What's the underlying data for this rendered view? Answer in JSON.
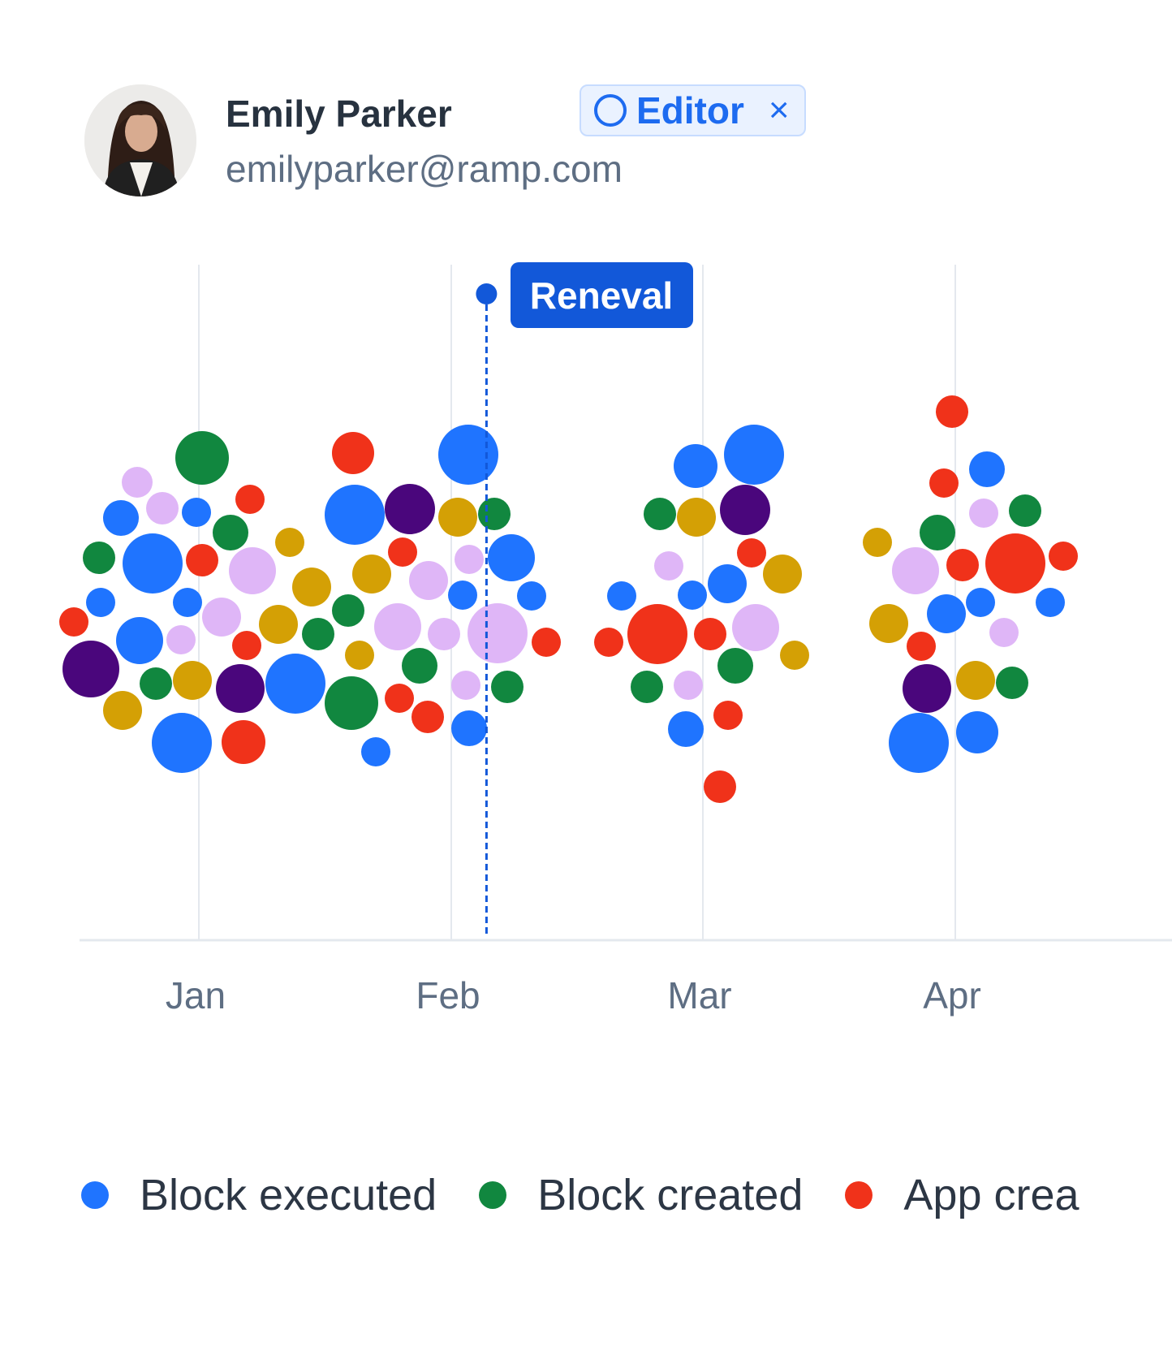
{
  "user": {
    "name": "Emily Parker",
    "email": "emilyparker@ramp.com",
    "role": "Editor",
    "role_icon": "circle-icon",
    "remove_icon": "close-icon",
    "remove_glyph": "×"
  },
  "colors": {
    "blue": "#1f74ff",
    "green": "#11873f",
    "red": "#f0321a",
    "gold": "#d4a005",
    "lavender": "#dfb6f7",
    "purple": "#4a067c",
    "marker": "#1258d9",
    "grid": "#e4e8ee",
    "axis_label": "#5e6e83"
  },
  "chart_data": {
    "type": "scatter",
    "x_tick_labels": [
      "Jan",
      "Feb",
      "Mar",
      "Apr"
    ],
    "annotation": {
      "label": "Reneval",
      "x_month_offset": 1.14
    },
    "series_legend": [
      {
        "name": "Block executed",
        "color": "blue"
      },
      {
        "name": "Block created",
        "color": "green"
      },
      {
        "name": "App crea",
        "color": "red"
      }
    ],
    "bubbles": [
      [
        169,
        594,
        19,
        "lavender"
      ],
      [
        249,
        564,
        33,
        "green"
      ],
      [
        200,
        626,
        20,
        "lavender"
      ],
      [
        149,
        638,
        22,
        "blue"
      ],
      [
        242,
        631,
        18,
        "blue"
      ],
      [
        308,
        615,
        18,
        "red"
      ],
      [
        284,
        656,
        22,
        "green"
      ],
      [
        122,
        687,
        20,
        "green"
      ],
      [
        188,
        694,
        37,
        "blue"
      ],
      [
        249,
        690,
        20,
        "red"
      ],
      [
        311,
        703,
        29,
        "lavender"
      ],
      [
        357,
        668,
        18,
        "gold"
      ],
      [
        124,
        742,
        18,
        "blue"
      ],
      [
        231,
        742,
        18,
        "blue"
      ],
      [
        273,
        760,
        24,
        "lavender"
      ],
      [
        384,
        723,
        24,
        "gold"
      ],
      [
        91,
        766,
        18,
        "red"
      ],
      [
        343,
        769,
        24,
        "gold"
      ],
      [
        172,
        789,
        29,
        "blue"
      ],
      [
        223,
        788,
        18,
        "lavender"
      ],
      [
        304,
        795,
        18,
        "red"
      ],
      [
        392,
        781,
        20,
        "green"
      ],
      [
        112,
        824,
        35,
        "purple"
      ],
      [
        192,
        842,
        20,
        "green"
      ],
      [
        237,
        838,
        24,
        "gold"
      ],
      [
        296,
        848,
        30,
        "purple"
      ],
      [
        364,
        842,
        37,
        "blue"
      ],
      [
        151,
        875,
        24,
        "gold"
      ],
      [
        224,
        915,
        37,
        "blue"
      ],
      [
        300,
        914,
        27,
        "red"
      ],
      [
        435,
        558,
        26,
        "red"
      ],
      [
        437,
        634,
        37,
        "blue"
      ],
      [
        505,
        627,
        31,
        "purple"
      ],
      [
        496,
        680,
        18,
        "red"
      ],
      [
        458,
        707,
        24,
        "gold"
      ],
      [
        528,
        715,
        24,
        "lavender"
      ],
      [
        429,
        752,
        20,
        "green"
      ],
      [
        490,
        772,
        29,
        "lavender"
      ],
      [
        443,
        807,
        18,
        "gold"
      ],
      [
        517,
        820,
        22,
        "green"
      ],
      [
        433,
        866,
        33,
        "green"
      ],
      [
        492,
        860,
        18,
        "red"
      ],
      [
        527,
        883,
        20,
        "red"
      ],
      [
        463,
        926,
        18,
        "blue"
      ],
      [
        577,
        560,
        37,
        "blue"
      ],
      [
        564,
        637,
        24,
        "gold"
      ],
      [
        609,
        633,
        20,
        "green"
      ],
      [
        578,
        689,
        18,
        "lavender"
      ],
      [
        630,
        687,
        29,
        "blue"
      ],
      [
        570,
        733,
        18,
        "blue"
      ],
      [
        655,
        734,
        18,
        "blue"
      ],
      [
        547,
        781,
        20,
        "lavender"
      ],
      [
        613,
        780,
        37,
        "lavender"
      ],
      [
        673,
        791,
        18,
        "red"
      ],
      [
        574,
        844,
        18,
        "lavender"
      ],
      [
        625,
        846,
        20,
        "green"
      ],
      [
        578,
        897,
        22,
        "blue"
      ],
      [
        857,
        574,
        27,
        "blue"
      ],
      [
        929,
        560,
        37,
        "blue"
      ],
      [
        813,
        633,
        20,
        "green"
      ],
      [
        858,
        637,
        24,
        "gold"
      ],
      [
        918,
        628,
        31,
        "purple"
      ],
      [
        926,
        681,
        18,
        "red"
      ],
      [
        824,
        697,
        18,
        "lavender"
      ],
      [
        964,
        707,
        24,
        "gold"
      ],
      [
        766,
        734,
        18,
        "blue"
      ],
      [
        853,
        733,
        18,
        "blue"
      ],
      [
        896,
        719,
        24,
        "blue"
      ],
      [
        810,
        781,
        37,
        "red"
      ],
      [
        875,
        781,
        20,
        "red"
      ],
      [
        931,
        773,
        29,
        "lavender"
      ],
      [
        750,
        791,
        18,
        "red"
      ],
      [
        979,
        807,
        18,
        "gold"
      ],
      [
        906,
        820,
        22,
        "green"
      ],
      [
        797,
        846,
        20,
        "green"
      ],
      [
        848,
        844,
        18,
        "lavender"
      ],
      [
        897,
        881,
        18,
        "red"
      ],
      [
        845,
        898,
        22,
        "blue"
      ],
      [
        887,
        969,
        20,
        "red"
      ],
      [
        1173,
        507,
        20,
        "red"
      ],
      [
        1216,
        578,
        22,
        "blue"
      ],
      [
        1163,
        595,
        18,
        "red"
      ],
      [
        1212,
        632,
        18,
        "lavender"
      ],
      [
        1263,
        629,
        20,
        "green"
      ],
      [
        1155,
        656,
        22,
        "green"
      ],
      [
        1081,
        668,
        18,
        "gold"
      ],
      [
        1128,
        703,
        29,
        "lavender"
      ],
      [
        1186,
        696,
        20,
        "red"
      ],
      [
        1251,
        694,
        37,
        "red"
      ],
      [
        1310,
        685,
        18,
        "red"
      ],
      [
        1208,
        742,
        18,
        "blue"
      ],
      [
        1294,
        742,
        18,
        "blue"
      ],
      [
        1166,
        756,
        24,
        "blue"
      ],
      [
        1095,
        768,
        24,
        "gold"
      ],
      [
        1237,
        779,
        18,
        "lavender"
      ],
      [
        1135,
        796,
        18,
        "red"
      ],
      [
        1142,
        848,
        30,
        "purple"
      ],
      [
        1202,
        838,
        24,
        "gold"
      ],
      [
        1247,
        841,
        20,
        "green"
      ],
      [
        1132,
        915,
        37,
        "blue"
      ],
      [
        1204,
        902,
        26,
        "blue"
      ]
    ]
  }
}
